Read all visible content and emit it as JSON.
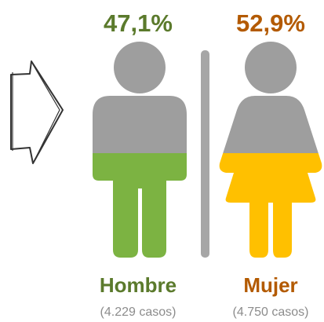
{
  "items": [
    {
      "percent": "47,1%",
      "label": "Hombre",
      "cases": "(4.229 casos)"
    },
    {
      "percent": "52,9%",
      "label": "Mujer",
      "cases": "(4.750 casos)"
    }
  ]
}
